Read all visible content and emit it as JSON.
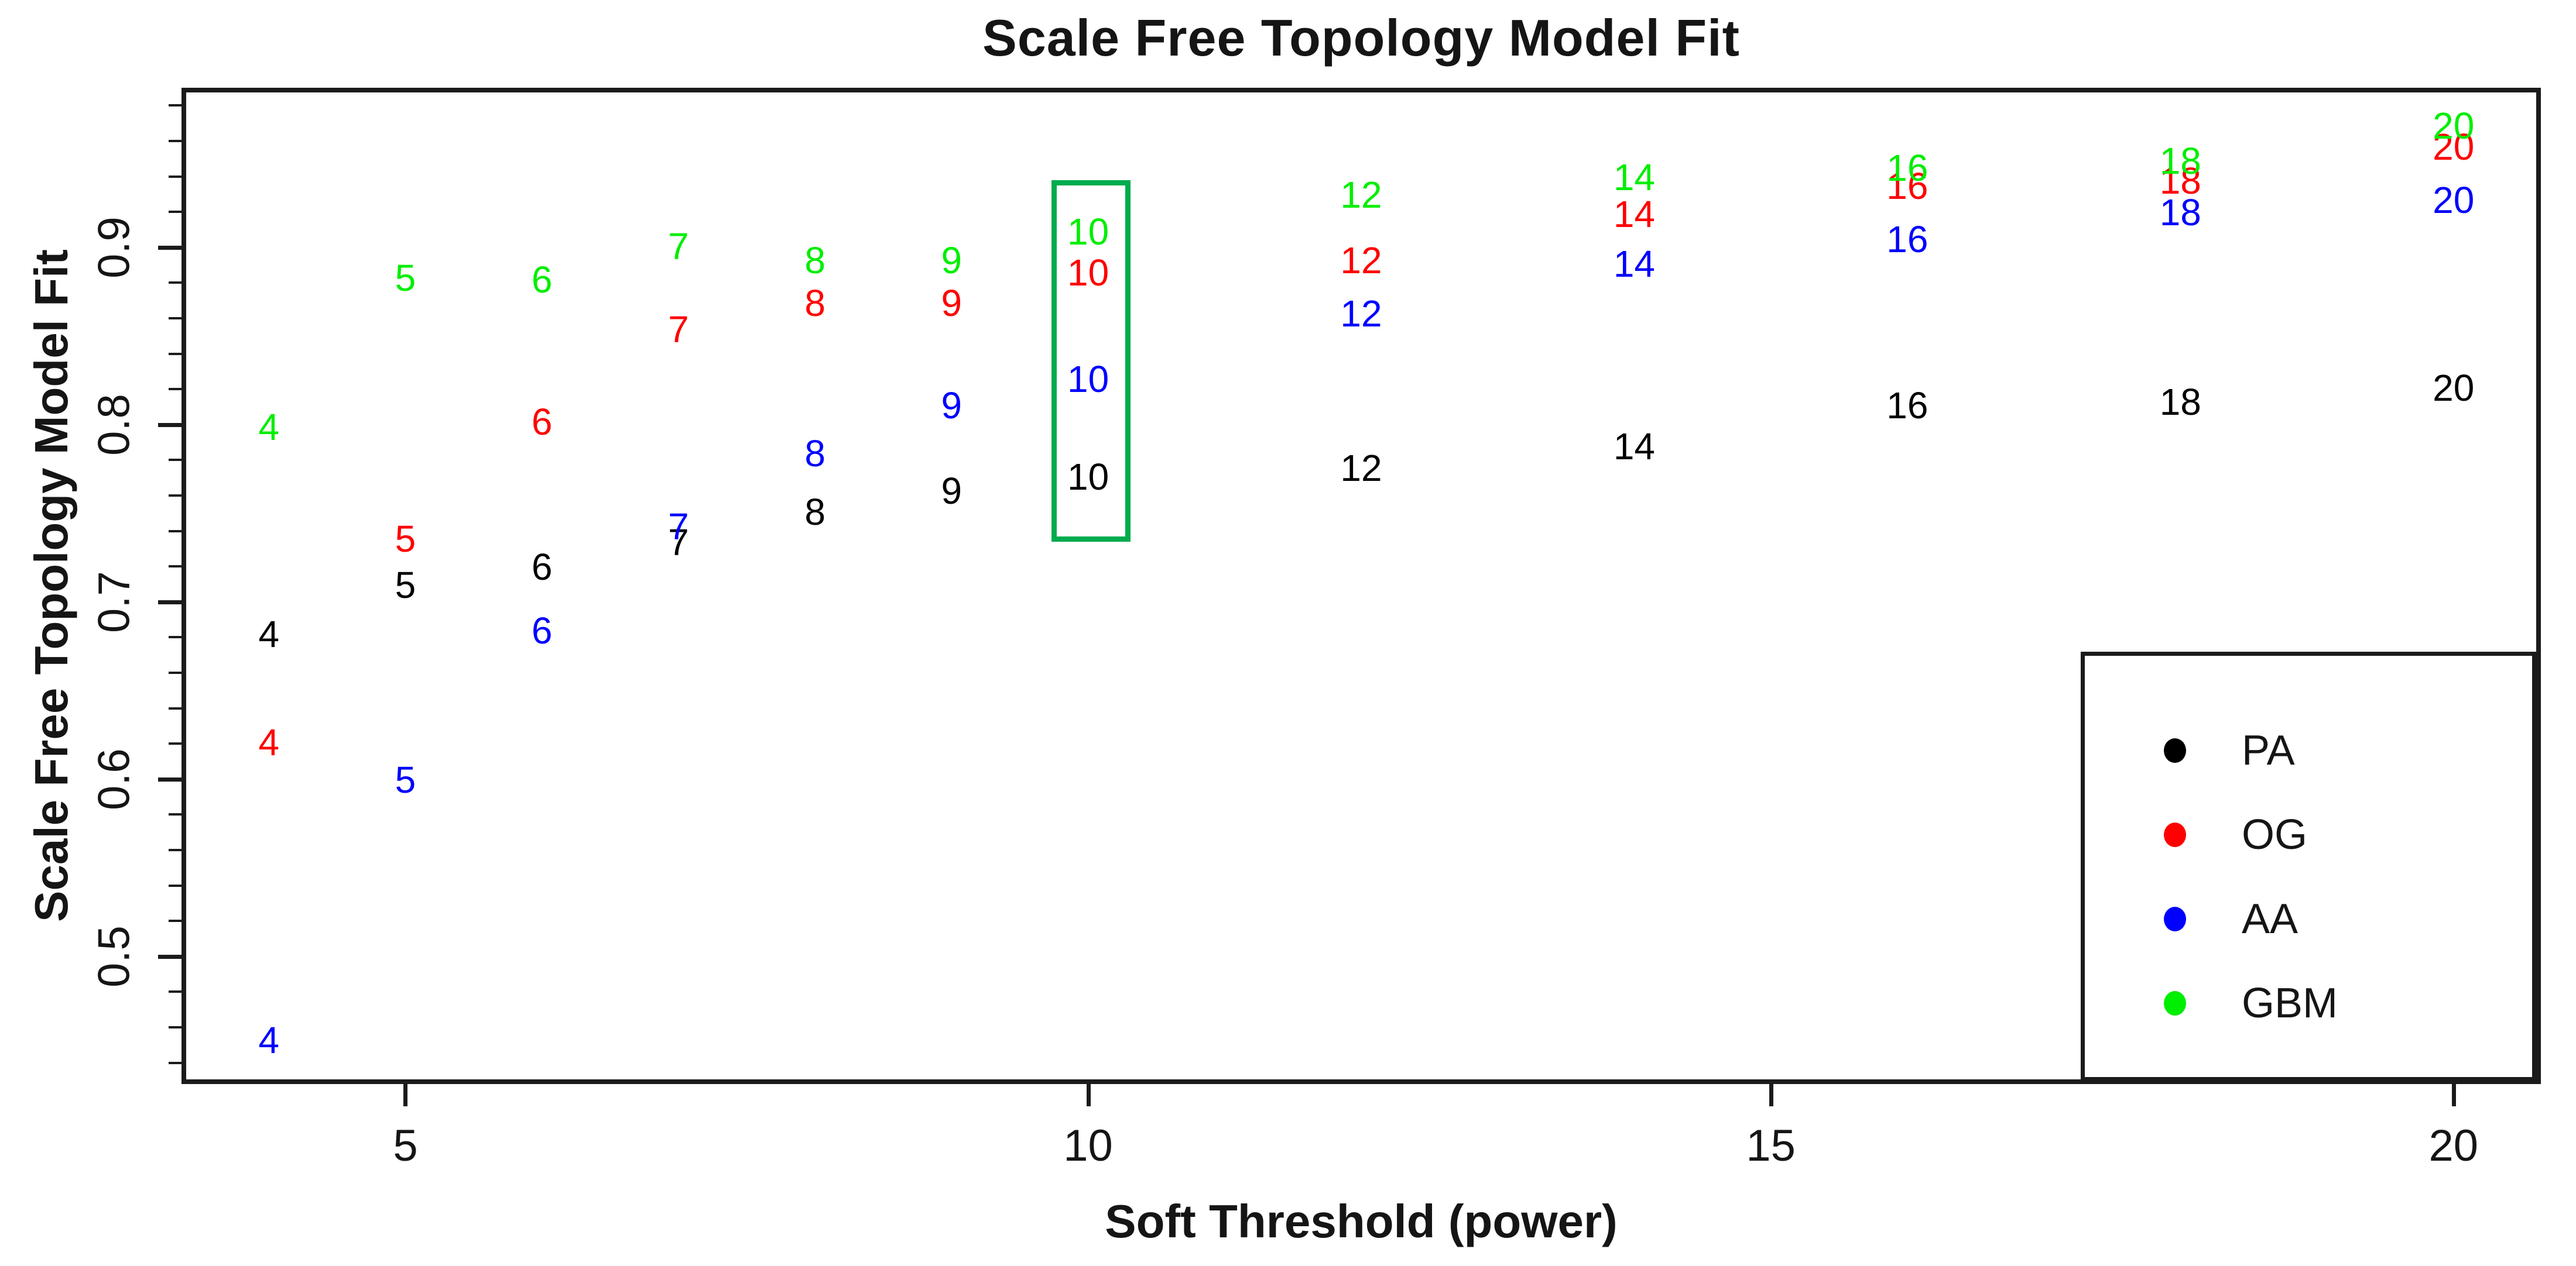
{
  "title": "Scale Free Topology Model Fit",
  "x_axis_label": "Soft Threshold (power)",
  "y_axis_label": "Scale Free Topology Model Fit",
  "colors": {
    "background": "#ffffff",
    "axis": "#1b1b1b",
    "pa": "#000000",
    "og": "#ff0000",
    "aa": "#0000ff",
    "gbm": "#00ee00",
    "highlight_box": "#00ab4e"
  },
  "chart_data": {
    "type": "scatter",
    "marker": "text-label (each point drawn as its power value)",
    "title": "Scale Free Topology Model Fit",
    "xlabel": "Soft Threshold (power)",
    "ylabel": "Scale Free Topology Model Fit",
    "x": [
      4,
      5,
      6,
      7,
      8,
      9,
      10,
      12,
      14,
      16,
      18,
      20
    ],
    "series": [
      {
        "name": "PA",
        "color": "#000000",
        "values": [
          0.681,
          0.709,
          0.719,
          0.733,
          0.75,
          0.762,
          0.77,
          0.775,
          0.787,
          0.81,
          0.812,
          0.82
        ]
      },
      {
        "name": "OG",
        "color": "#ff0000",
        "values": [
          0.62,
          0.735,
          0.801,
          0.853,
          0.868,
          0.868,
          0.885,
          0.892,
          0.918,
          0.934,
          0.937,
          0.956
        ]
      },
      {
        "name": "AA",
        "color": "#0000ff",
        "values": [
          0.452,
          0.599,
          0.683,
          0.742,
          0.783,
          0.81,
          0.825,
          0.862,
          0.89,
          0.904,
          0.919,
          0.926
        ]
      },
      {
        "name": "GBM",
        "color": "#00ee00",
        "values": [
          0.798,
          0.882,
          0.881,
          0.9,
          0.892,
          0.892,
          0.908,
          0.929,
          0.939,
          0.944,
          0.948,
          0.968
        ]
      }
    ],
    "xlim": [
      3.36,
      20.64
    ],
    "ylim": [
      0.428,
      0.99
    ],
    "x_ticks": [
      5,
      10,
      15,
      20
    ],
    "y_ticks": [
      0.5,
      0.6,
      0.7,
      0.8,
      0.9
    ],
    "y_minor_tick_step": 0.02,
    "grid": false,
    "legend_position": "bottom-right",
    "legend_entries": [
      "PA",
      "OG",
      "AA",
      "GBM"
    ],
    "highlight_box": {
      "x_from": 9.73,
      "x_to": 10.31,
      "y_from": 0.734,
      "y_to": 0.938
    }
  }
}
